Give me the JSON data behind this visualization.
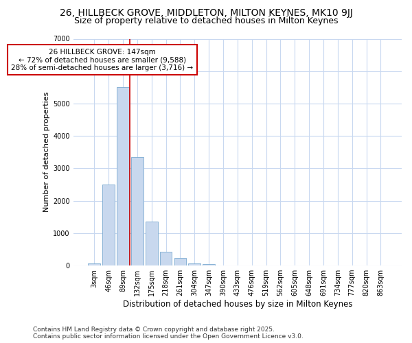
{
  "title1": "26, HILLBECK GROVE, MIDDLETON, MILTON KEYNES, MK10 9JJ",
  "title2": "Size of property relative to detached houses in Milton Keynes",
  "xlabel": "Distribution of detached houses by size in Milton Keynes",
  "ylabel": "Number of detached properties",
  "categories": [
    "3sqm",
    "46sqm",
    "89sqm",
    "132sqm",
    "175sqm",
    "218sqm",
    "261sqm",
    "304sqm",
    "347sqm",
    "390sqm",
    "433sqm",
    "476sqm",
    "519sqm",
    "562sqm",
    "605sqm",
    "648sqm",
    "691sqm",
    "734sqm",
    "777sqm",
    "820sqm",
    "863sqm"
  ],
  "values": [
    75,
    2500,
    5500,
    3350,
    1350,
    425,
    225,
    75,
    50,
    10,
    5,
    0,
    0,
    0,
    0,
    0,
    0,
    0,
    0,
    0,
    0
  ],
  "bar_color": "#c8d8ee",
  "bar_edge_color": "#7aaad0",
  "vline_color": "#cc0000",
  "vline_pos": 2.5,
  "annotation_line1": "26 HILLBECK GROVE: 147sqm",
  "annotation_line2": "← 72% of detached houses are smaller (9,588)",
  "annotation_line3": "28% of semi-detached houses are larger (3,716) →",
  "annotation_box_facecolor": "#ffffff",
  "annotation_box_edgecolor": "#cc0000",
  "ylim_max": 7000,
  "yticks": [
    0,
    1000,
    2000,
    3000,
    4000,
    5000,
    6000,
    7000
  ],
  "footer_line1": "Contains HM Land Registry data © Crown copyright and database right 2025.",
  "footer_line2": "Contains public sector information licensed under the Open Government Licence v3.0.",
  "bg_color": "#ffffff",
  "plot_bg_color": "#ffffff",
  "grid_color": "#c8d8f0",
  "title1_fontsize": 10,
  "title2_fontsize": 9,
  "tick_fontsize": 7,
  "ylabel_fontsize": 8,
  "xlabel_fontsize": 8.5,
  "annot_fontsize": 7.5,
  "footer_fontsize": 6.5
}
